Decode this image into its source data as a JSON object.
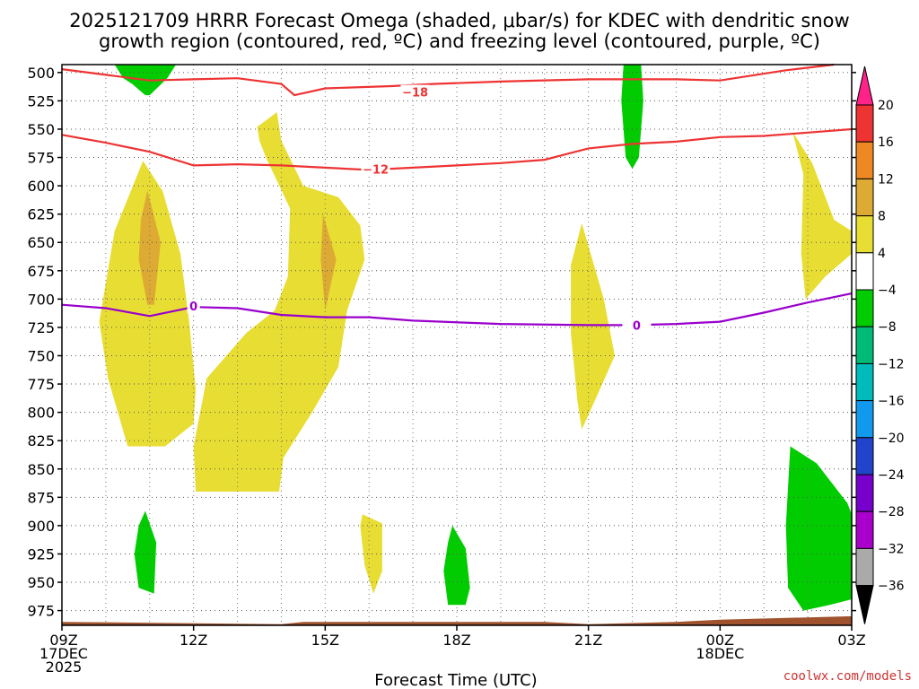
{
  "title": {
    "line1": "2025121709 HRRR Forecast Omega (shaded, μbar/s) for KDEC with dendritic snow",
    "line2": "growth region (contoured, red, ºC) and freezing level (contoured, purple, ºC)"
  },
  "xlabel": "Forecast Time (UTC)",
  "credit": "coolwx.com/models",
  "colors": {
    "temp_contour": "#ee3333",
    "freezing_contour": "#9900cc",
    "ground": "#a0522d",
    "grid": "#888888"
  },
  "chart_data": {
    "type": "time-height contour",
    "x_unit": "hours since 2025-12-17 09Z",
    "xlim": [
      0,
      18
    ],
    "y_unit": "hPa",
    "ylim": [
      988,
      493
    ],
    "x_ticks": [
      {
        "hour": 0,
        "lines": [
          "09Z",
          "17DEC",
          "2025"
        ]
      },
      {
        "hour": 3,
        "lines": [
          "12Z"
        ]
      },
      {
        "hour": 6,
        "lines": [
          "15Z"
        ]
      },
      {
        "hour": 9,
        "lines": [
          "18Z"
        ]
      },
      {
        "hour": 12,
        "lines": [
          "21Z"
        ]
      },
      {
        "hour": 15,
        "lines": [
          "00Z",
          "18DEC"
        ]
      },
      {
        "hour": 18,
        "lines": [
          "03Z"
        ]
      }
    ],
    "y_ticks": [
      500,
      525,
      550,
      575,
      600,
      625,
      650,
      675,
      700,
      725,
      750,
      775,
      800,
      825,
      850,
      875,
      900,
      925,
      950,
      975
    ],
    "colorbar": {
      "levels": [
        20,
        16,
        12,
        8,
        4,
        -4,
        -8,
        -12,
        -16,
        -20,
        -24,
        -28,
        -32,
        -36
      ],
      "colors": [
        "#ff2288",
        "#ee3333",
        "#ee8822",
        "#ddaa33",
        "#e8dd33",
        "#ffffff",
        "#00cc00",
        "#00bb77",
        "#00bbbb",
        "#1199ee",
        "#2244cc",
        "#7700cc",
        "#aa00cc",
        "#aaaaaa",
        "#000000"
      ]
    },
    "omega_regions": [
      {
        "name": "green-top-left",
        "color": "#00cc00",
        "points": [
          [
            1.2,
            493
          ],
          [
            2.6,
            493
          ],
          [
            2.4,
            505
          ],
          [
            2.0,
            520
          ],
          [
            1.9,
            520
          ],
          [
            1.6,
            510
          ],
          [
            1.4,
            505
          ]
        ]
      },
      {
        "name": "yellow-left",
        "color": "#e8dd33",
        "points": [
          [
            1.85,
            578
          ],
          [
            2.3,
            605
          ],
          [
            2.7,
            660
          ],
          [
            2.9,
            720
          ],
          [
            3.05,
            780
          ],
          [
            3.0,
            810
          ],
          [
            2.35,
            830
          ],
          [
            1.5,
            830
          ],
          [
            1.05,
            770
          ],
          [
            0.85,
            720
          ],
          [
            1.2,
            640
          ]
        ]
      },
      {
        "name": "orange-left",
        "color": "#ddaa33",
        "points": [
          [
            1.95,
            604
          ],
          [
            2.25,
            650
          ],
          [
            2.1,
            705
          ],
          [
            1.95,
            705
          ],
          [
            1.75,
            665
          ],
          [
            1.8,
            630
          ]
        ]
      },
      {
        "name": "yellow-middle",
        "color": "#e8dd33",
        "points": [
          [
            5.0,
            560
          ],
          [
            5.5,
            600
          ],
          [
            6.3,
            610
          ],
          [
            6.8,
            635
          ],
          [
            6.9,
            665
          ],
          [
            6.5,
            710
          ],
          [
            6.3,
            760
          ],
          [
            5.7,
            800
          ],
          [
            5.05,
            840
          ],
          [
            4.95,
            870
          ],
          [
            3.05,
            870
          ],
          [
            3.0,
            830
          ],
          [
            3.3,
            770
          ],
          [
            4.2,
            730
          ],
          [
            4.85,
            710
          ],
          [
            5.15,
            680
          ],
          [
            5.2,
            620
          ],
          [
            4.65,
            575
          ],
          [
            4.5,
            560
          ],
          [
            4.45,
            548
          ],
          [
            4.9,
            535
          ]
        ]
      },
      {
        "name": "orange-middle",
        "color": "#ddaa33",
        "points": [
          [
            5.95,
            625
          ],
          [
            6.25,
            665
          ],
          [
            6.0,
            710
          ],
          [
            5.9,
            665
          ]
        ]
      },
      {
        "name": "green-top-right",
        "color": "#00cc00",
        "points": [
          [
            12.8,
            493
          ],
          [
            13.2,
            493
          ],
          [
            13.25,
            525
          ],
          [
            13.15,
            575
          ],
          [
            13.0,
            585
          ],
          [
            12.85,
            575
          ],
          [
            12.75,
            525
          ]
        ]
      },
      {
        "name": "yellow-right-mid",
        "color": "#e8dd33",
        "points": [
          [
            11.85,
            633
          ],
          [
            12.35,
            700
          ],
          [
            12.6,
            750
          ],
          [
            12.2,
            785
          ],
          [
            11.85,
            815
          ],
          [
            11.75,
            790
          ],
          [
            11.6,
            730
          ],
          [
            11.6,
            670
          ]
        ]
      },
      {
        "name": "yellow-right-top",
        "color": "#e8dd33",
        "points": [
          [
            16.65,
            552
          ],
          [
            17.1,
            580
          ],
          [
            17.6,
            630
          ],
          [
            18.0,
            640
          ],
          [
            18.0,
            660
          ],
          [
            17.4,
            680
          ],
          [
            16.95,
            700
          ],
          [
            16.85,
            660
          ],
          [
            16.9,
            590
          ]
        ]
      },
      {
        "name": "green-bottom-left",
        "color": "#00cc00",
        "points": [
          [
            1.9,
            887
          ],
          [
            2.15,
            915
          ],
          [
            2.1,
            960
          ],
          [
            1.75,
            955
          ],
          [
            1.65,
            925
          ],
          [
            1.75,
            900
          ]
        ]
      },
      {
        "name": "yellow-bottom-center",
        "color": "#e8dd33",
        "points": [
          [
            6.85,
            890
          ],
          [
            7.3,
            898
          ],
          [
            7.3,
            940
          ],
          [
            7.1,
            960
          ],
          [
            6.9,
            935
          ],
          [
            6.8,
            900
          ]
        ]
      },
      {
        "name": "green-bottom-center",
        "color": "#00cc00",
        "points": [
          [
            8.9,
            900
          ],
          [
            9.2,
            920
          ],
          [
            9.3,
            955
          ],
          [
            9.2,
            970
          ],
          [
            8.8,
            970
          ],
          [
            8.7,
            940
          ],
          [
            8.8,
            915
          ]
        ]
      },
      {
        "name": "green-bottom-right",
        "color": "#00cc00",
        "points": [
          [
            16.6,
            830
          ],
          [
            17.2,
            845
          ],
          [
            17.9,
            880
          ],
          [
            18.0,
            890
          ],
          [
            18.0,
            965
          ],
          [
            17.5,
            970
          ],
          [
            16.9,
            975
          ],
          [
            16.55,
            955
          ],
          [
            16.5,
            900
          ]
        ]
      }
    ],
    "temp_contours": [
      {
        "label": "-18",
        "label_at": [
          8.05,
          518
        ],
        "points": [
          [
            0,
            497
          ],
          [
            1.0,
            502
          ],
          [
            2.0,
            507
          ],
          [
            3.0,
            506
          ],
          [
            4.0,
            505
          ],
          [
            5.0,
            510
          ],
          [
            5.3,
            520
          ],
          [
            6.0,
            514
          ],
          [
            7.5,
            512
          ],
          [
            8.5,
            510
          ],
          [
            10,
            508
          ],
          [
            12,
            506
          ],
          [
            14,
            506
          ],
          [
            15,
            507
          ],
          [
            16.5,
            498
          ],
          [
            17.6,
            490
          ]
        ]
      },
      {
        "label": "-12",
        "label_at": [
          7.15,
          586
        ],
        "points": [
          [
            0,
            555
          ],
          [
            1,
            562
          ],
          [
            2,
            570
          ],
          [
            3,
            582
          ],
          [
            4,
            581
          ],
          [
            5,
            582
          ],
          [
            6,
            584
          ],
          [
            7,
            586
          ],
          [
            8,
            584
          ],
          [
            9,
            582
          ],
          [
            10,
            580
          ],
          [
            11,
            577
          ],
          [
            12,
            567
          ],
          [
            13,
            563
          ],
          [
            14,
            561
          ],
          [
            15,
            557
          ],
          [
            16,
            556
          ],
          [
            17,
            553
          ],
          [
            18,
            550
          ]
        ]
      },
      {
        "label": "0",
        "label_at": [
          13.1,
          724
        ],
        "color": "freezing",
        "points": [
          [
            0,
            705
          ],
          [
            1,
            708
          ],
          [
            2,
            715
          ],
          [
            3,
            707
          ],
          [
            4,
            708
          ],
          [
            5,
            714
          ],
          [
            6,
            716
          ],
          [
            7,
            716
          ],
          [
            8,
            719
          ],
          [
            10,
            722
          ],
          [
            12,
            723
          ],
          [
            13,
            723
          ],
          [
            14,
            722
          ],
          [
            15,
            720
          ],
          [
            16,
            712
          ],
          [
            17,
            703
          ],
          [
            18,
            695
          ]
        ]
      }
    ],
    "freezing_extra_label": {
      "label": "0",
      "label_at": [
        3.0,
        707
      ]
    },
    "ground": [
      [
        0,
        985
      ],
      [
        5,
        987
      ],
      [
        5.5,
        985
      ],
      [
        11,
        985
      ],
      [
        12,
        987
      ],
      [
        14,
        985
      ],
      [
        15,
        983
      ],
      [
        18,
        980
      ],
      [
        18,
        992
      ],
      [
        0,
        992
      ]
    ]
  }
}
